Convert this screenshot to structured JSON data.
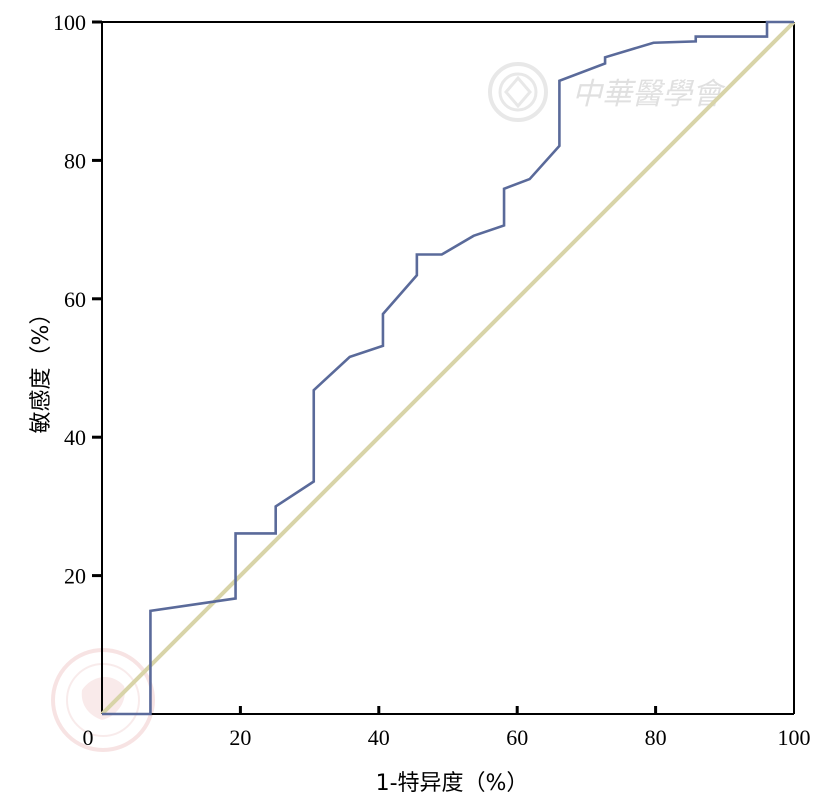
{
  "chart_data": {
    "type": "line",
    "xlabel": "1-特异度（%）",
    "ylabel": "敏感度（%）",
    "xlim": [
      0,
      100
    ],
    "ylim": [
      0,
      100
    ],
    "x_ticks": [
      0,
      20,
      40,
      60,
      80,
      100
    ],
    "y_ticks": [
      20,
      40,
      60,
      80,
      100
    ],
    "y_tick_labels": [
      "20",
      "40",
      "60",
      "80",
      "100"
    ],
    "x_tick_labels": [
      "0",
      "20",
      "40",
      "60",
      "80",
      "100"
    ],
    "grid": false,
    "series": [
      {
        "color": "#5a6a9a",
        "x": [
          0,
          7,
          7,
          19.3,
          19.3,
          25.1,
          25.1,
          30.6,
          30.6,
          35.8,
          40.6,
          40.6,
          45.5,
          45.5,
          49.1,
          53.7,
          58.1,
          58.1,
          61.8,
          66.1,
          66.1,
          72.7,
          72.7,
          79.7,
          85.8,
          85.8,
          96.1,
          96.1,
          100
        ],
        "y": [
          0,
          0,
          14.9,
          16.7,
          26.1,
          26.1,
          30.0,
          33.6,
          46.8,
          51.6,
          53.2,
          57.8,
          63.4,
          66.4,
          66.4,
          69.1,
          70.6,
          75.9,
          77.3,
          82.1,
          91.5,
          94.0,
          94.9,
          97.0,
          97.2,
          97.9,
          97.9,
          100,
          100
        ]
      },
      {
        "color": "#d8d4a8",
        "x": [
          0,
          100
        ],
        "y": [
          0,
          100
        ]
      }
    ]
  },
  "watermarks": {
    "publisher_text": "中華醫學會",
    "seal_text": "CHINESE MEDICAL ASSOCIATION",
    "seal_top_text": "中华医学会"
  }
}
